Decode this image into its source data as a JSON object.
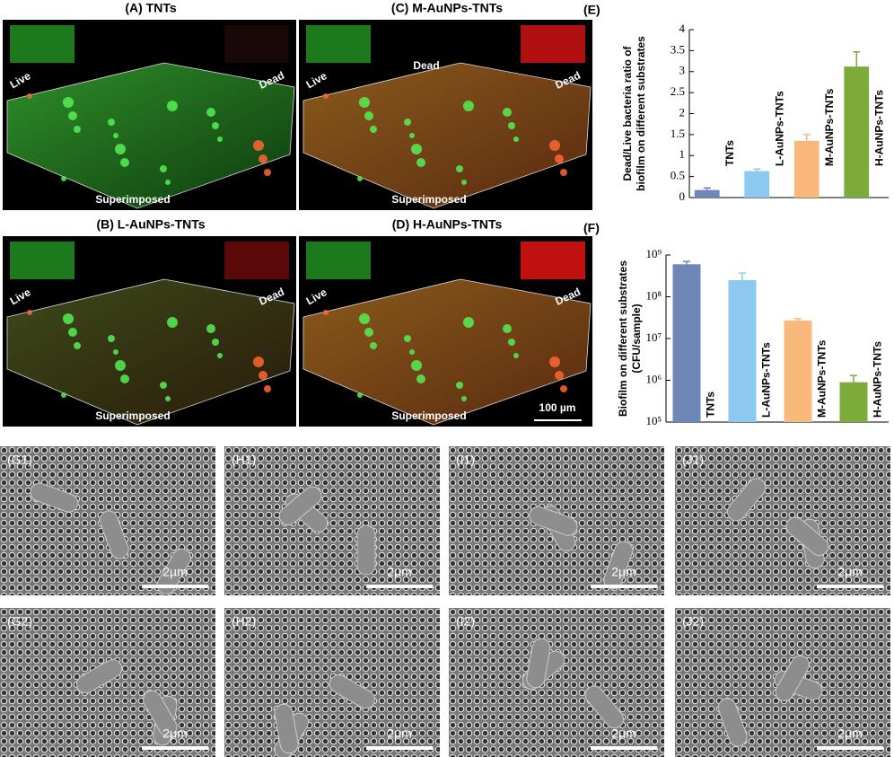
{
  "panels": [
    {
      "label": "(A)  TNTs",
      "inset_left": "Live",
      "inset_right": "Dead",
      "bottom": "Superimposed"
    },
    {
      "label": "(C)  M-AuNPs-TNTs",
      "inset_left": "Live",
      "inset_right": "Dead",
      "middle": "Dead",
      "bottom": "Superimposed"
    },
    {
      "label": "(B)  L-AuNPs-TNTs",
      "inset_left": "Live",
      "inset_right": "Dead",
      "bottom": "Superimposed"
    },
    {
      "label": "(D)  H-AuNPs-TNTs",
      "inset_left": "Live",
      "inset_right": "Dead",
      "bottom": "Superimposed",
      "scale": "100 µm"
    }
  ],
  "chart_data": [
    {
      "type": "bar",
      "panel": "(E)",
      "ylabel": [
        "Dead/Live bacteria ratio of",
        "biofilm on different substrates"
      ],
      "categories": [
        "TNTs",
        "L-AuNPs-TNTs",
        "M-AuNPs-TNTs",
        "H-AuNPs-TNTs"
      ],
      "values": [
        0.18,
        0.63,
        1.35,
        3.12
      ],
      "errors": [
        0.05,
        0.05,
        0.15,
        0.35
      ],
      "colors": [
        "#6f86b8",
        "#8cc8f0",
        "#f9b97a",
        "#7cab3c"
      ],
      "ylim": [
        0,
        4
      ],
      "yticks": [
        0,
        0.5,
        1,
        1.5,
        2,
        2.5,
        3,
        3.5,
        4
      ]
    },
    {
      "type": "bar",
      "panel": "(F)",
      "ylabel": [
        "Biofilm on different substrates",
        "(CFU/sample)"
      ],
      "categories": [
        "TNTs",
        "L-AuNPs-TNTs",
        "M-AuNPs-TNTs",
        "H-AuNPs-TNTs"
      ],
      "values": [
        600000000,
        250000000,
        27000000,
        900000
      ],
      "errors": [
        100000000,
        120000000,
        3000000,
        400000
      ],
      "colors": [
        "#6f86b8",
        "#8cc8f0",
        "#f9b97a",
        "#7cab3c"
      ],
      "log": true,
      "ylim": [
        100000,
        1000000000
      ],
      "yticks": [
        {
          "value": 100000,
          "label": "10⁵"
        },
        {
          "value": 1000000,
          "label": "10⁶"
        },
        {
          "value": 10000000,
          "label": "10⁷"
        },
        {
          "value": 100000000,
          "label": "10⁸"
        },
        {
          "value": 1000000000,
          "label": "10⁹"
        }
      ]
    }
  ],
  "sem": [
    {
      "label": "(G1)",
      "scale": "2µm"
    },
    {
      "label": "(H1)",
      "scale": "2µm"
    },
    {
      "label": "(I1)",
      "scale": "2µm"
    },
    {
      "label": "(J1)",
      "scale": "2µm"
    },
    {
      "label": "(G2)",
      "scale": "2µm"
    },
    {
      "label": "(H2)",
      "scale": "2µm"
    },
    {
      "label": "(I2)",
      "scale": "2µm"
    },
    {
      "label": "(J2)",
      "scale": "2µm"
    }
  ]
}
